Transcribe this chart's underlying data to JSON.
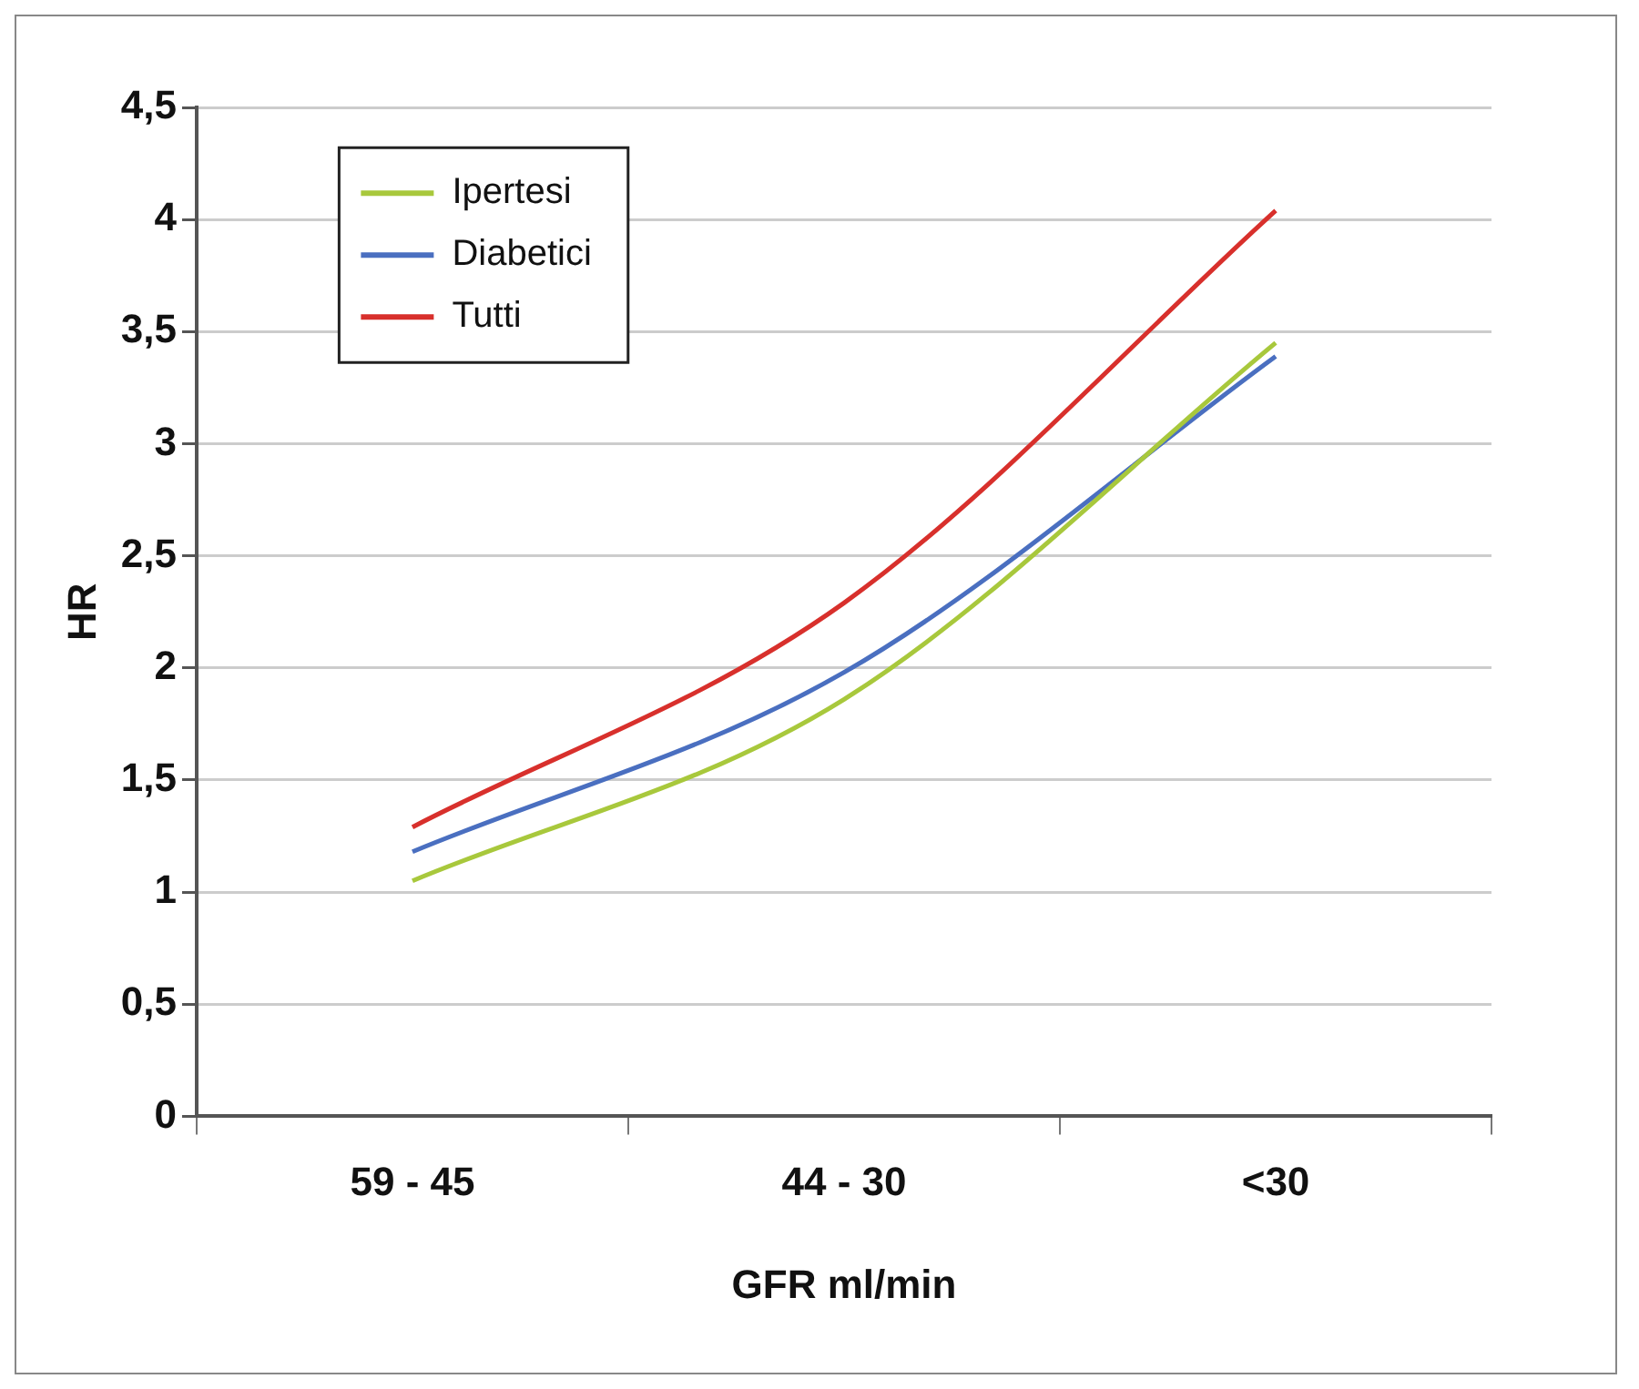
{
  "chart_data": {
    "type": "line",
    "xlabel": "GFR ml/min",
    "ylabel": "HR",
    "categories": [
      "59 - 45",
      "44 - 30",
      "<30"
    ],
    "series": [
      {
        "name": "Ipertesi",
        "color": "#a8c83c",
        "values": [
          1.05,
          1.86,
          3.45
        ]
      },
      {
        "name": "Diabetici",
        "color": "#4a6fc0",
        "values": [
          1.18,
          1.98,
          3.39
        ]
      },
      {
        "name": "Tutti",
        "color": "#d8302c",
        "values": [
          1.29,
          2.29,
          4.04
        ]
      }
    ],
    "ylim": [
      0,
      4.5
    ],
    "yticks": [
      {
        "value": 0,
        "label": "0"
      },
      {
        "value": 0.5,
        "label": "0,5"
      },
      {
        "value": 1,
        "label": "1"
      },
      {
        "value": 1.5,
        "label": "1,5"
      },
      {
        "value": 2,
        "label": "2"
      },
      {
        "value": 2.5,
        "label": "2,5"
      },
      {
        "value": 3,
        "label": "3"
      },
      {
        "value": 3.5,
        "label": "3,5"
      },
      {
        "value": 4,
        "label": "4"
      },
      {
        "value": 4.5,
        "label": "4,5"
      }
    ],
    "grid": "y",
    "legend": "top left",
    "marker": "none",
    "line_style": "solid"
  }
}
